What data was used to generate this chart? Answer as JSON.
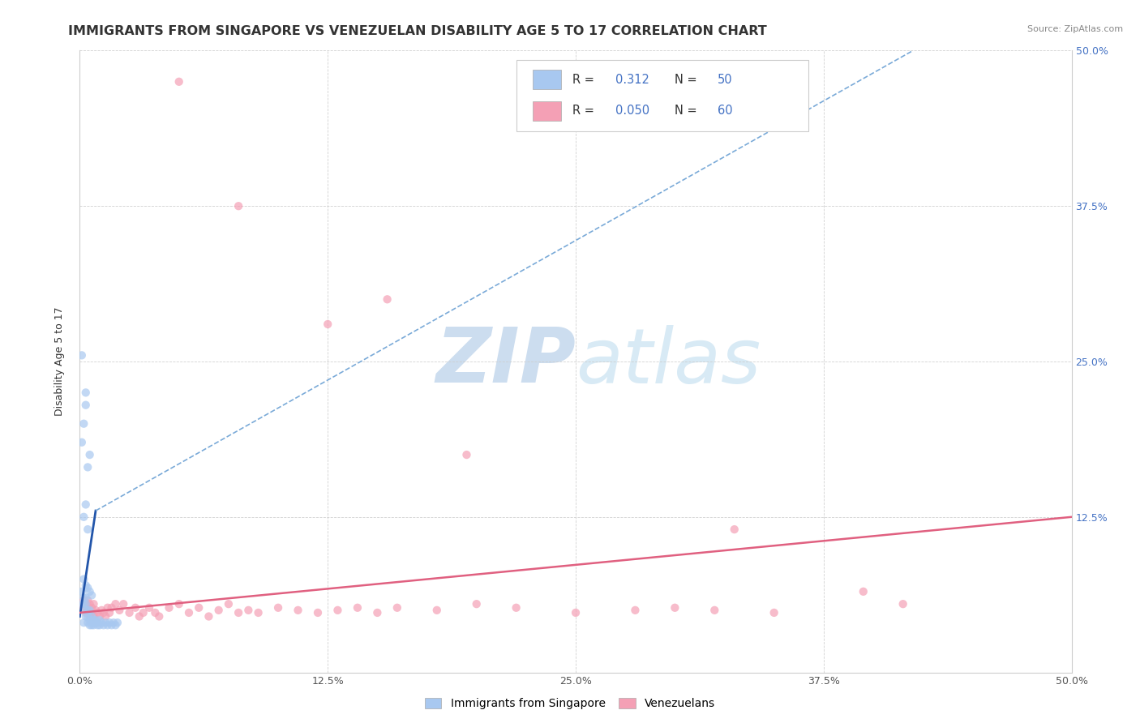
{
  "title": "IMMIGRANTS FROM SINGAPORE VS VENEZUELAN DISABILITY AGE 5 TO 17 CORRELATION CHART",
  "source": "Source: ZipAtlas.com",
  "ylabel": "Disability Age 5 to 17",
  "xlim": [
    0,
    0.5
  ],
  "ylim": [
    0,
    0.5
  ],
  "xtick_vals": [
    0.0,
    0.125,
    0.25,
    0.375,
    0.5
  ],
  "ytick_vals": [
    0.0,
    0.125,
    0.25,
    0.375,
    0.5
  ],
  "right_ytick_vals": [
    0.125,
    0.25,
    0.375,
    0.5
  ],
  "color_singapore": "#a8c8f0",
  "color_venezuela": "#f4a0b5",
  "color_line_singapore_solid": "#2255aa",
  "color_line_singapore_dashed": "#7aaad8",
  "color_line_venezuela": "#e06080",
  "watermark_zi": "#c8dff5",
  "watermark_atlas": "#d8e8f0",
  "grid_color": "#cccccc",
  "bottom_legend_labels": [
    "Immigrants from Singapore",
    "Venezuelans"
  ],
  "title_fontsize": 11.5,
  "axis_fontsize": 9,
  "label_fontsize": 9,
  "right_tick_color": "#4472c4",
  "legend_color_text": "#333333",
  "legend_color_num": "#4472c4"
}
